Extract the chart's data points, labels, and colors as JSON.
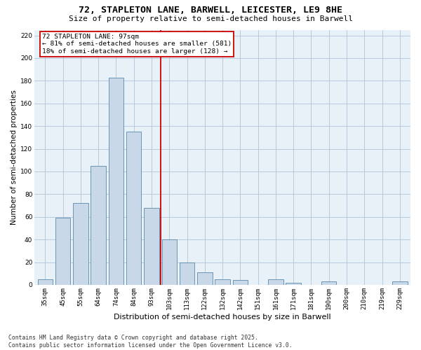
{
  "title1": "72, STAPLETON LANE, BARWELL, LEICESTER, LE9 8HE",
  "title2": "Size of property relative to semi-detached houses in Barwell",
  "xlabel": "Distribution of semi-detached houses by size in Barwell",
  "ylabel": "Number of semi-detached properties",
  "categories": [
    "35sqm",
    "45sqm",
    "55sqm",
    "64sqm",
    "74sqm",
    "84sqm",
    "93sqm",
    "103sqm",
    "113sqm",
    "122sqm",
    "132sqm",
    "142sqm",
    "151sqm",
    "161sqm",
    "171sqm",
    "181sqm",
    "190sqm",
    "200sqm",
    "210sqm",
    "219sqm",
    "229sqm"
  ],
  "values": [
    5,
    59,
    72,
    105,
    183,
    135,
    68,
    40,
    20,
    11,
    5,
    4,
    0,
    5,
    2,
    0,
    3,
    0,
    0,
    0,
    3
  ],
  "bar_color": "#c8d8e8",
  "bar_edge_color": "#5a88aa",
  "vline_color": "#cc0000",
  "annotation_text": "72 STAPLETON LANE: 97sqm\n← 81% of semi-detached houses are smaller (581)\n18% of semi-detached houses are larger (128) →",
  "ylim": [
    0,
    225
  ],
  "yticks": [
    0,
    20,
    40,
    60,
    80,
    100,
    120,
    140,
    160,
    180,
    200,
    220
  ],
  "grid_color": "#b0c4d8",
  "bg_color": "#e8f0f8",
  "footer1": "Contains HM Land Registry data © Crown copyright and database right 2025.",
  "footer2": "Contains public sector information licensed under the Open Government Licence v3.0.",
  "title_fontsize": 9.5,
  "subtitle_fontsize": 8,
  "axis_label_fontsize": 7.5,
  "tick_fontsize": 6.5,
  "annotation_fontsize": 6.8,
  "footer_fontsize": 5.8
}
